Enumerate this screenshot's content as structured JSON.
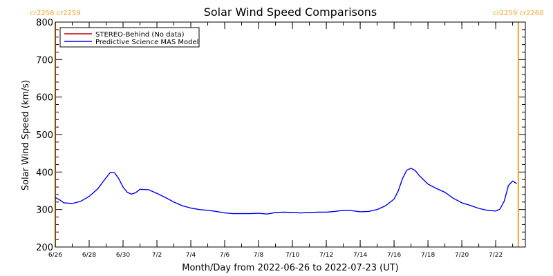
{
  "chart_data": {
    "type": "line",
    "title": "Solar Wind Speed Comparisons",
    "xlabel": "Month/Day from 2022-06-26 to 2022-07-23 (UT)",
    "ylabel": "Solar Wind Speed (km/s)",
    "xlim": [
      "2022-06-26",
      "2022-07-23T18:00"
    ],
    "ylim": [
      200,
      800
    ],
    "y_ticks": [
      200,
      300,
      400,
      500,
      600,
      700,
      800
    ],
    "x_ticks": [
      {
        "date": "2022-06-26",
        "label": "6/26"
      },
      {
        "date": "2022-06-28",
        "label": "6/28"
      },
      {
        "date": "2022-06-30",
        "label": "6/30"
      },
      {
        "date": "2022-07-02",
        "label": "7/2"
      },
      {
        "date": "2022-07-04",
        "label": "7/4"
      },
      {
        "date": "2022-07-06",
        "label": "7/6"
      },
      {
        "date": "2022-07-08",
        "label": "7/8"
      },
      {
        "date": "2022-07-10",
        "label": "7/10"
      },
      {
        "date": "2022-07-12",
        "label": "7/12"
      },
      {
        "date": "2022-07-14",
        "label": "7/14"
      },
      {
        "date": "2022-07-16",
        "label": "7/16"
      },
      {
        "date": "2022-07-18",
        "label": "7/18"
      },
      {
        "date": "2022-07-20",
        "label": "7/20"
      },
      {
        "date": "2022-07-22",
        "label": "7/22"
      }
    ],
    "legend_position": "top-left",
    "series": [
      {
        "name": "STEREO-Behind (No data)",
        "color": "#c00000",
        "points": []
      },
      {
        "name": "Predictive Science MAS Model",
        "color": "#0000ee",
        "points": [
          [
            "2022-06-26T00:00",
            332
          ],
          [
            "2022-06-26T06:00",
            326
          ],
          [
            "2022-06-26T12:00",
            318
          ],
          [
            "2022-06-27T00:00",
            316
          ],
          [
            "2022-06-27T12:00",
            322
          ],
          [
            "2022-06-28T00:00",
            335
          ],
          [
            "2022-06-28T12:00",
            355
          ],
          [
            "2022-06-29T00:00",
            385
          ],
          [
            "2022-06-29T06:00",
            399
          ],
          [
            "2022-06-29T12:00",
            398
          ],
          [
            "2022-06-29T18:00",
            382
          ],
          [
            "2022-06-30T00:00",
            360
          ],
          [
            "2022-06-30T06:00",
            346
          ],
          [
            "2022-06-30T12:00",
            341
          ],
          [
            "2022-06-30T18:00",
            345
          ],
          [
            "2022-07-01T00:00",
            354
          ],
          [
            "2022-07-01T12:00",
            353
          ],
          [
            "2022-07-02T00:00",
            343
          ],
          [
            "2022-07-02T12:00",
            332
          ],
          [
            "2022-07-03T00:00",
            320
          ],
          [
            "2022-07-03T12:00",
            310
          ],
          [
            "2022-07-04T00:00",
            304
          ],
          [
            "2022-07-04T12:00",
            300
          ],
          [
            "2022-07-05T00:00",
            298
          ],
          [
            "2022-07-05T12:00",
            295
          ],
          [
            "2022-07-06T00:00",
            291
          ],
          [
            "2022-07-06T12:00",
            289
          ],
          [
            "2022-07-07T00:00",
            289
          ],
          [
            "2022-07-07T12:00",
            289
          ],
          [
            "2022-07-08T00:00",
            290
          ],
          [
            "2022-07-08T12:00",
            288
          ],
          [
            "2022-07-09T00:00",
            292
          ],
          [
            "2022-07-09T12:00",
            293
          ],
          [
            "2022-07-10T00:00",
            292
          ],
          [
            "2022-07-10T12:00",
            291
          ],
          [
            "2022-07-11T00:00",
            292
          ],
          [
            "2022-07-11T12:00",
            293
          ],
          [
            "2022-07-12T00:00",
            293
          ],
          [
            "2022-07-12T12:00",
            295
          ],
          [
            "2022-07-13T00:00",
            298
          ],
          [
            "2022-07-13T12:00",
            297
          ],
          [
            "2022-07-14T00:00",
            294
          ],
          [
            "2022-07-14T12:00",
            295
          ],
          [
            "2022-07-15T00:00",
            300
          ],
          [
            "2022-07-15T12:00",
            310
          ],
          [
            "2022-07-16T00:00",
            328
          ],
          [
            "2022-07-16T06:00",
            350
          ],
          [
            "2022-07-16T12:00",
            383
          ],
          [
            "2022-07-16T18:00",
            405
          ],
          [
            "2022-07-17T00:00",
            410
          ],
          [
            "2022-07-17T06:00",
            404
          ],
          [
            "2022-07-17T12:00",
            390
          ],
          [
            "2022-07-18T00:00",
            368
          ],
          [
            "2022-07-18T12:00",
            356
          ],
          [
            "2022-07-19T00:00",
            346
          ],
          [
            "2022-07-19T12:00",
            330
          ],
          [
            "2022-07-20T00:00",
            318
          ],
          [
            "2022-07-20T12:00",
            311
          ],
          [
            "2022-07-21T00:00",
            303
          ],
          [
            "2022-07-21T12:00",
            298
          ],
          [
            "2022-07-22T00:00",
            296
          ],
          [
            "2022-07-22T06:00",
            301
          ],
          [
            "2022-07-22T12:00",
            322
          ],
          [
            "2022-07-22T18:00",
            364
          ],
          [
            "2022-07-23T00:00",
            376
          ],
          [
            "2022-07-23T06:00",
            369
          ]
        ]
      }
    ],
    "carrington_markers": [
      {
        "date": "2022-06-26T00:00",
        "label": "cr2258 cr2259",
        "color": "#f5a020"
      },
      {
        "date": "2022-07-23T08:00",
        "label": "cr2259 cr2260",
        "color": "#f5a020"
      }
    ]
  }
}
